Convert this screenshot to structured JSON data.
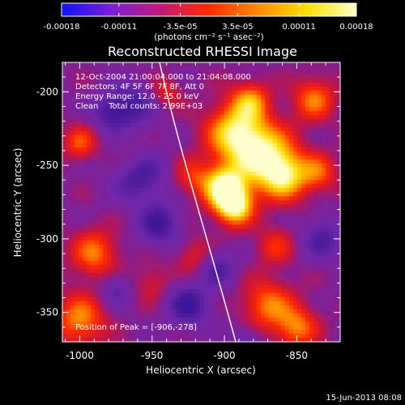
{
  "colorbar": {
    "tick_labels": [
      "-0.00018",
      "-0.00011",
      "-3.5e-05",
      "3.5e-05",
      "0.00011",
      "0.00018"
    ],
    "tick_values": [
      -0.00018,
      -0.00011,
      -3.5e-05,
      3.5e-05,
      0.00011,
      0.00018
    ],
    "range": [
      -0.00018,
      0.00018
    ],
    "units": "(photons cm⁻² s⁻¹ asec⁻²)",
    "gradient_colors": [
      "#1010ff",
      "#7a1fd6",
      "#c01a7a",
      "#ff2a00",
      "#ff8a00",
      "#ffe000",
      "#ffffc8"
    ]
  },
  "title": "Reconstructed RHESSI Image",
  "annotations": {
    "time_range": "12-Oct-2004 21:00:04.000 to 21:04:08.000",
    "detectors": "Detectors: 4F 5F 6F 7F 8F, Att 0",
    "energy_range": "Energy Range: 12.0 - 25.0 keV",
    "clean_counts": "Clean    Total counts: 2.99E+03",
    "peak_position": "Position of Peak = [-906,-278]"
  },
  "x_axis": {
    "label": "Heliocentric X (arcsec)",
    "tick_labels": [
      "-1000",
      "-950",
      "-900",
      "-850"
    ],
    "tick_values": [
      -1000,
      -950,
      -900,
      -850
    ],
    "range": [
      -1012,
      -820
    ]
  },
  "y_axis": {
    "label": "Heliocentric Y (arcsec)",
    "tick_labels": [
      "-200",
      "-250",
      "-300",
      "-350"
    ],
    "tick_values": [
      -200,
      -250,
      -300,
      -350
    ],
    "range": [
      -370,
      -180
    ]
  },
  "image": {
    "peak_xy": [
      -906,
      -278
    ]
  },
  "footer": {
    "date": "15-Jun-2013 08:08"
  }
}
